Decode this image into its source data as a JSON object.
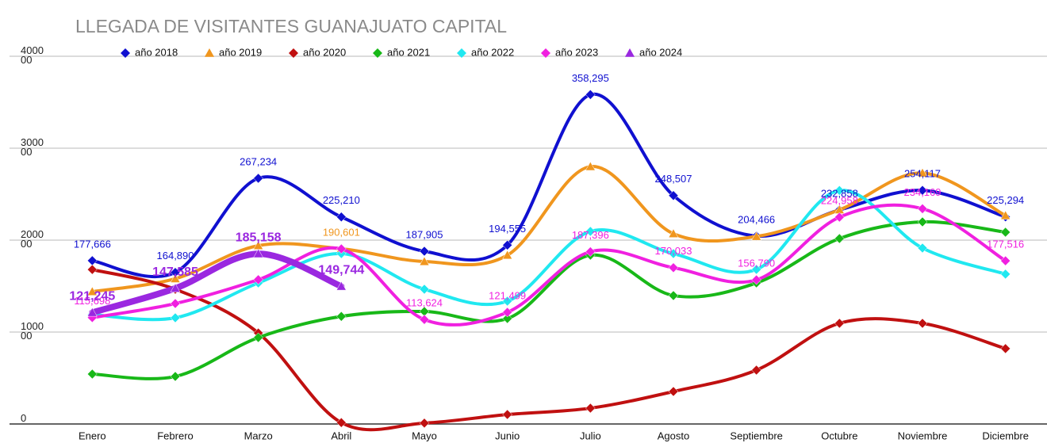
{
  "chart_data": {
    "type": "line",
    "title": "LLEGADA DE VISITANTES GUANAJUATO CAPITAL",
    "categories": [
      "Enero",
      "Febrero",
      "Marzo",
      "Abril",
      "Mayo",
      "Junio",
      "Julio",
      "Agosto",
      "Septiembre",
      "Octubre",
      "Noviembre",
      "Diciembre"
    ],
    "ylim": [
      0,
      400000
    ],
    "yticks": [
      0,
      100000,
      200000,
      300000,
      400000
    ],
    "grid": true,
    "smooth": true,
    "series": [
      {
        "name": "año 2018",
        "color": "#1010d0",
        "marker": "diamond",
        "values": [
          177666,
          164890,
          267234,
          225210,
          187905,
          194555,
          358295,
          248507,
          204466,
          232858,
          254117,
          225294
        ],
        "value_labels": [
          "177,666",
          "164,890",
          "267,234",
          "225,210",
          "187,905",
          "194,555",
          "358,295",
          "248,507",
          "204,466",
          "232,858",
          "254,117",
          "225,294"
        ]
      },
      {
        "name": "año 2019",
        "color": "#f0961e",
        "marker": "triangle",
        "values": [
          144000,
          158000,
          193974,
          190601,
          176700,
          183600,
          280000,
          207000,
          204000,
          233000,
          273000,
          226700
        ],
        "value_labels": [
          null,
          null,
          null,
          "190,601",
          null,
          null,
          null,
          null,
          null,
          null,
          null,
          null
        ]
      },
      {
        "name": "año 2020",
        "color": "#c01010",
        "marker": "diamond",
        "values": [
          168000,
          146500,
          99000,
          1500,
          1000,
          10300,
          17200,
          35300,
          58600,
          109500,
          109500,
          82000
        ]
      },
      {
        "name": "año 2021",
        "color": "#18b818",
        "marker": "diamond",
        "values": [
          54300,
          51700,
          94000,
          117000,
          122400,
          114700,
          183600,
          139700,
          153400,
          201700,
          219800,
          208600
        ]
      },
      {
        "name": "año 2022",
        "color": "#20e8f0",
        "marker": "diamond",
        "values": [
          119000,
          115500,
          153400,
          185300,
          146600,
          133600,
          209500,
          185300,
          168100,
          254000,
          191400,
          163000
        ]
      },
      {
        "name": "año 2023",
        "color": "#f020e0",
        "marker": "diamond",
        "values": [
          115698,
          131000,
          157000,
          190500,
          113624,
          121499,
          187396,
          170033,
          156790,
          224958,
          234169,
          177516
        ],
        "value_labels": [
          "115,698",
          null,
          null,
          null,
          "113,624",
          "121,499",
          "187,396",
          "170,033",
          "156,790",
          "224,958",
          "234,169",
          "177,516"
        ]
      },
      {
        "name": "año 2024",
        "color": "#9a28e0",
        "marker": "triangle",
        "bold": true,
        "values": [
          121245,
          147585,
          185158,
          149744,
          null,
          null,
          null,
          null,
          null,
          null,
          null,
          null
        ],
        "value_labels": [
          "121,245",
          "147,585",
          "185,158",
          "149,744",
          null,
          null,
          null,
          null,
          null,
          null,
          null,
          null
        ]
      }
    ]
  }
}
